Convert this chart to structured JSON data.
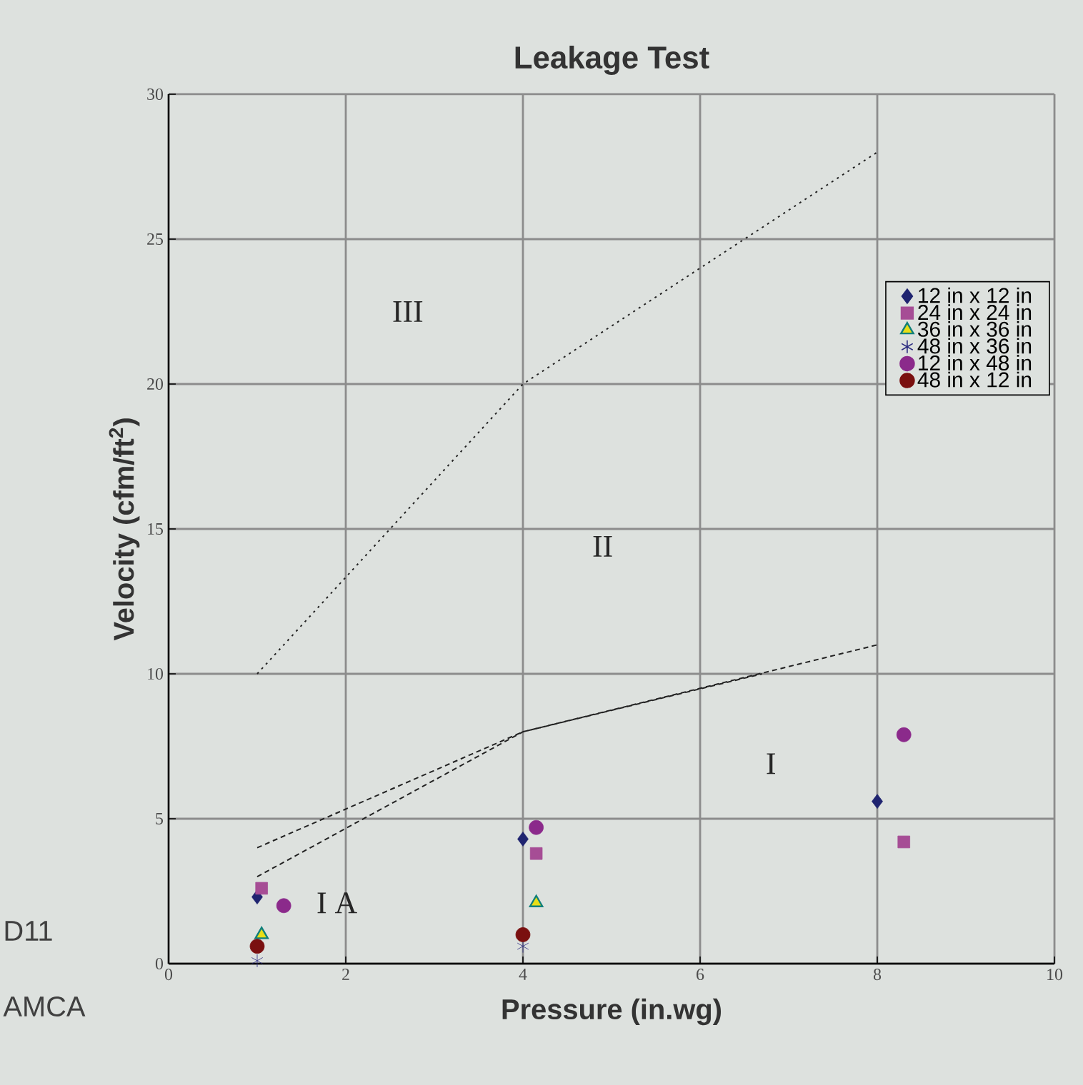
{
  "chart_data": {
    "type": "scatter",
    "title": "Leakage Test",
    "xlabel": "Pressure (in.wg)",
    "ylabel": "Velocity (cfm/ft$^{2}$)",
    "xlim": [
      0,
      10
    ],
    "ylim": [
      0,
      30
    ],
    "xticks": [
      0,
      2,
      4,
      6,
      8,
      10
    ],
    "yticks": [
      0,
      5,
      10,
      15,
      20,
      25,
      30
    ],
    "grid": true,
    "legend": "top right",
    "annotations": [
      "III",
      "II",
      "I",
      "I A",
      "D11",
      "AMCA"
    ],
    "series": [
      {
        "name": "12 in x 12 in",
        "color": "#1f2470",
        "marker": "diamond",
        "x": [
          1,
          4,
          8
        ],
        "values": [
          2.3,
          4.3,
          5.6
        ]
      },
      {
        "name": "24 in x 24 in",
        "color": "#a64d95",
        "marker": "square",
        "x": [
          1.05,
          4.15,
          8.3
        ],
        "values": [
          2.6,
          3.8,
          4.2
        ]
      },
      {
        "name": "36 in x 36 in",
        "color": "#0f7f7a",
        "marker": "triangle",
        "x": [
          1.05,
          4.15
        ],
        "values": [
          1.0,
          2.1
        ]
      },
      {
        "name": "48 in x 36 in",
        "color": "#2a2a80",
        "marker": "cross",
        "x": [
          1,
          4
        ],
        "values": [
          0.1,
          0.6
        ]
      },
      {
        "name": "12 in x 48 in",
        "color": "#8b2a8b",
        "marker": "circle",
        "x": [
          1.3,
          4.15,
          8.3
        ],
        "values": [
          2.0,
          4.7,
          7.9
        ]
      },
      {
        "name": "48 in x 12 in",
        "color": "#7a1010",
        "marker": "circle",
        "x": [
          1,
          4
        ],
        "values": [
          0.6,
          1.0
        ]
      },
      {
        "type": "line",
        "color": "#222222",
        "line_style": "dotted",
        "marker": "none",
        "x": [
          1,
          4,
          8
        ],
        "values": [
          10,
          20,
          28
        ]
      },
      {
        "type": "line",
        "color": "#222222",
        "line_style": "dashed",
        "marker": "none",
        "x": [
          1,
          4,
          8
        ],
        "values": [
          4,
          8,
          11
        ]
      },
      {
        "type": "line",
        "color": "#222222",
        "line_style": "dashed",
        "marker": "none",
        "x": [
          1,
          4,
          6.7
        ],
        "values": [
          3,
          8,
          10
        ]
      }
    ]
  }
}
